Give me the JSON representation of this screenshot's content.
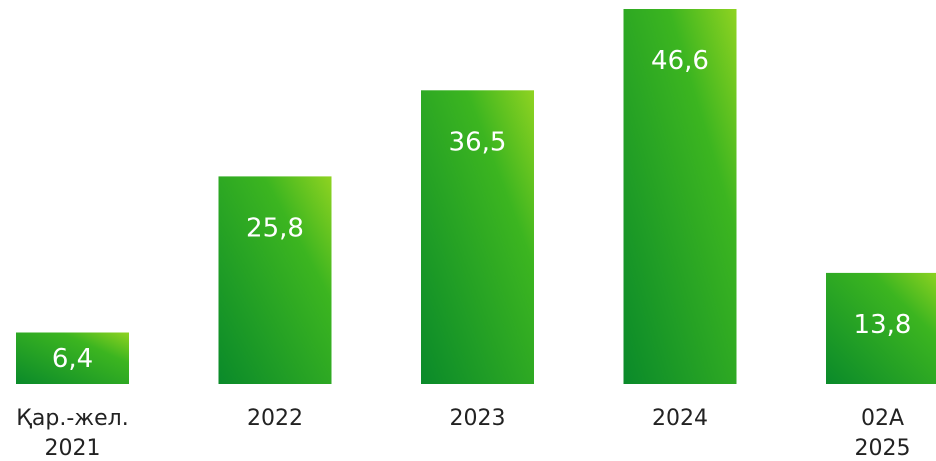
{
  "chart_data": {
    "type": "bar",
    "categories": [
      [
        "Қар.-жел.",
        "2021"
      ],
      [
        "2022"
      ],
      [
        "2023"
      ],
      [
        "2024"
      ],
      [
        "02А",
        "2025"
      ]
    ],
    "values": [
      6.4,
      25.8,
      36.5,
      46.6,
      13.8
    ],
    "value_labels": [
      "6,4",
      "25,8",
      "36,5",
      "46,6",
      "13,8"
    ],
    "title": "",
    "xlabel": "",
    "ylabel": "",
    "ylim": [
      0,
      46.6
    ],
    "grid": false,
    "legend": "none",
    "colors": {
      "bar_top": "#8fd321",
      "bar_mid": "#3cb520",
      "bar_bottom": "#0a8a2a",
      "label_text": "#ffffff",
      "category_text": "#222222"
    }
  }
}
